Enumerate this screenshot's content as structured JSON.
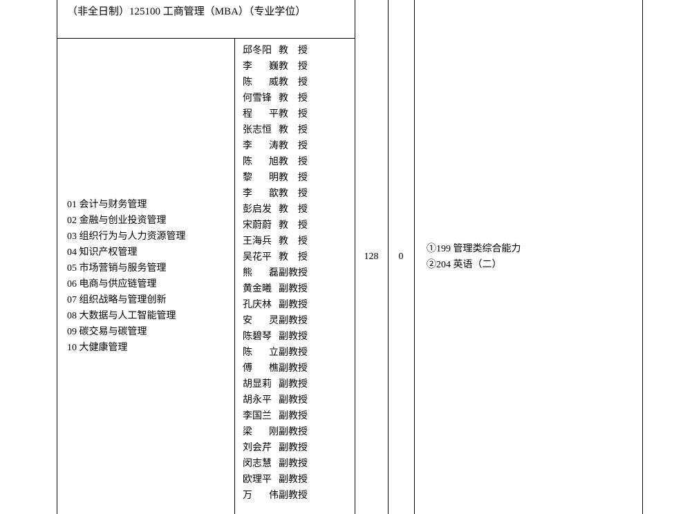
{
  "header": "（非全日制）125100 工商管理（MBA）（专业学位）",
  "directions": [
    "01 会计与财务管理",
    "02 金融与创业投资管理",
    "03 组织行为与人力资源管理",
    "04 知识产权管理",
    "05 市场营销与服务管理",
    "06 电商与供应链管理",
    "07 组织战略与管理创新",
    "08 大数据与人工智能管理",
    "09 碳交易与碳管理",
    "10 大健康管理"
  ],
  "faculty": [
    {
      "name": "邱冬阳",
      "title": "教授",
      "spaced": true
    },
    {
      "name": "李巍",
      "title": "教授",
      "spaced": true,
      "name2": true
    },
    {
      "name": "陈威",
      "title": "教授",
      "spaced": true,
      "name2": true
    },
    {
      "name": "何雪锋",
      "title": "教授",
      "spaced": true
    },
    {
      "name": "程平",
      "title": "教授",
      "spaced": true,
      "name2": true
    },
    {
      "name": "张志恒",
      "title": "教授",
      "spaced": true
    },
    {
      "name": "李涛",
      "title": "教授",
      "spaced": true,
      "name2": true
    },
    {
      "name": "陈旭",
      "title": "教授",
      "spaced": true,
      "name2": true
    },
    {
      "name": "黎明",
      "title": "教授",
      "spaced": true,
      "name2": true
    },
    {
      "name": "李歆",
      "title": "教授",
      "spaced": true,
      "name2": true
    },
    {
      "name": "彭启发",
      "title": "教授",
      "spaced": true
    },
    {
      "name": "宋蔚蔚",
      "title": "教授",
      "spaced": true
    },
    {
      "name": "王海兵",
      "title": "教授",
      "spaced": true
    },
    {
      "name": "吴花平",
      "title": "教授",
      "spaced": true
    },
    {
      "name": "熊磊",
      "title": "副教授",
      "name2": true
    },
    {
      "name": "黄金曦",
      "title": "副教授"
    },
    {
      "name": "孔庆林",
      "title": "副教授"
    },
    {
      "name": "安灵",
      "title": "副教授",
      "name2": true
    },
    {
      "name": "陈碧琴",
      "title": "副教授"
    },
    {
      "name": "陈立",
      "title": "副教授",
      "name2": true
    },
    {
      "name": "傅樵",
      "title": "副教授",
      "name2": true
    },
    {
      "name": "胡显莉",
      "title": "副教授"
    },
    {
      "name": "胡永平",
      "title": "副教授"
    },
    {
      "name": "李国兰",
      "title": "副教授"
    },
    {
      "name": "梁刚",
      "title": "副教授",
      "name2": true
    },
    {
      "name": "刘会芹",
      "title": "副教授"
    },
    {
      "name": "闵志慧",
      "title": "副教授"
    },
    {
      "name": "欧理平",
      "title": "副教授"
    },
    {
      "name": "万伟",
      "title": "副教授",
      "name2": true
    }
  ],
  "quota1": "128",
  "quota2": "0",
  "exams": [
    "①199 管理类综合能力",
    "②204 英语（二）"
  ]
}
